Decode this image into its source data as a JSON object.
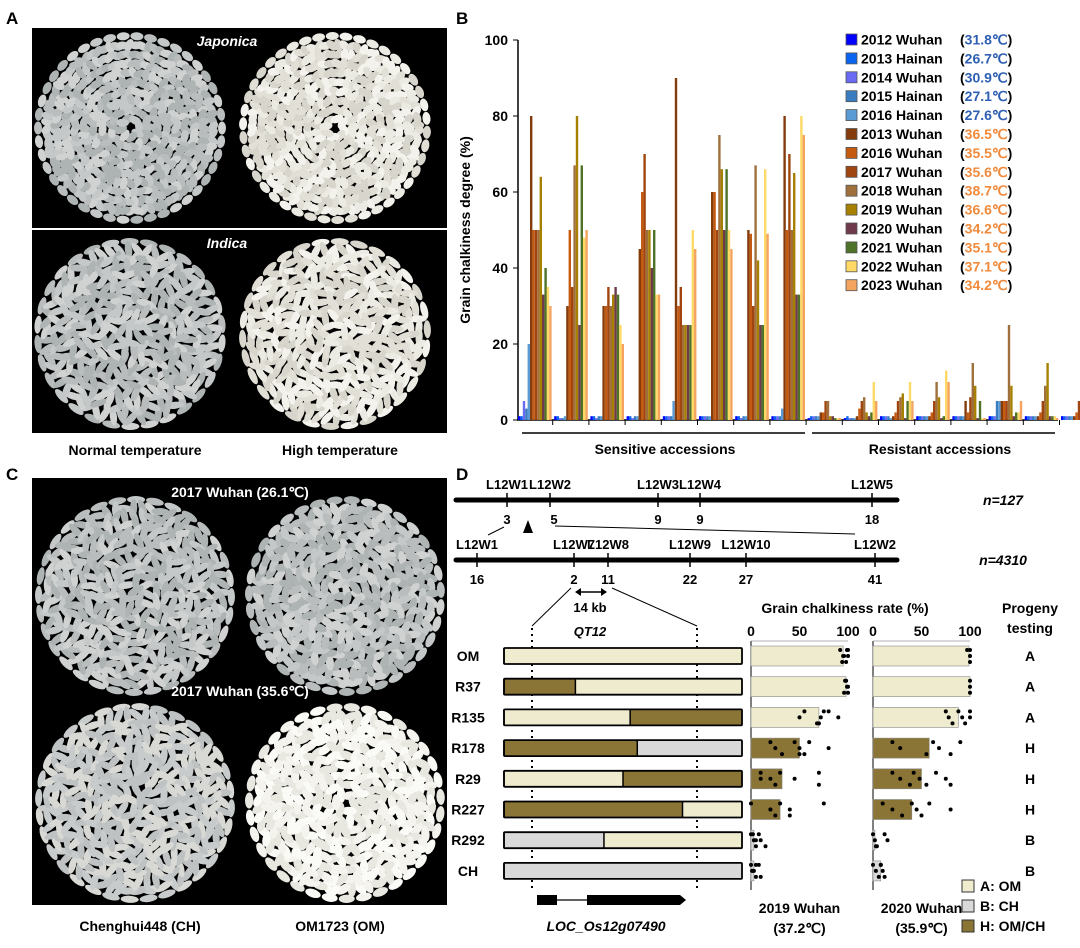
{
  "panels": {
    "a": "A",
    "b": "B",
    "c": "C",
    "d": "D"
  },
  "panel_a": {
    "top_label": "Japonica",
    "bottom_label": "Indica",
    "caption_left": "Normal temperature",
    "caption_right": "High temperature"
  },
  "panel_c": {
    "top_label": "2017 Wuhan (26.1℃)",
    "bottom_label": "2017 Wuhan (35.6℃)",
    "caption_left": "Chenghui448 (CH)",
    "caption_right": "OM1723 (OM)"
  },
  "chart_data": [
    {
      "type": "bar",
      "panel": "B",
      "ylabel": "Grain chalkiness degree (%)",
      "ylim": [
        0,
        100
      ],
      "yticks": [
        "0",
        "20",
        "40",
        "60",
        "80",
        "100"
      ],
      "groups": [
        "Sensitive accessions",
        "Resistant accessions"
      ],
      "legend_position": "top-right",
      "series": [
        {
          "name": "2012 Wuhan",
          "temp": "31.8℃",
          "color": "#0000ff",
          "temp_color": "#2f5fb3",
          "values": [
            1,
            1,
            1,
            1,
            1,
            1,
            1,
            1,
            0.5,
            0.5,
            1,
            1,
            1,
            1,
            1,
            1
          ]
        },
        {
          "name": "2013 Hainan",
          "temp": "26.7℃",
          "color": "#0a64f0",
          "temp_color": "#2f5fb3",
          "values": [
            1,
            1,
            1,
            1,
            1,
            1,
            1,
            1,
            1,
            1,
            1,
            1,
            1,
            1,
            1,
            1
          ]
        },
        {
          "name": "2014 Wuhan",
          "temp": "30.9℃",
          "color": "#6a6af5",
          "temp_color": "#2f5fb3",
          "values": [
            5,
            0.5,
            0.5,
            0.5,
            1,
            1,
            0.5,
            1,
            1,
            0.5,
            1,
            1,
            1,
            1,
            1,
            1
          ]
        },
        {
          "name": "2015 Hainan",
          "temp": "27.1℃",
          "color": "#3a7cc0",
          "temp_color": "#2f5fb3",
          "values": [
            3,
            0.5,
            1,
            1,
            1,
            1,
            1,
            1,
            1,
            0.5,
            1,
            1,
            1,
            5,
            1,
            1
          ]
        },
        {
          "name": "2016 Hainan",
          "temp": "27.6℃",
          "color": "#5b9bd5",
          "temp_color": "#2f5fb3",
          "values": [
            20,
            1,
            1,
            1,
            5,
            1,
            1,
            3,
            1,
            0.5,
            0.5,
            1,
            1,
            5,
            1,
            1
          ]
        },
        {
          "name": "2013 Wuhan",
          "temp": "36.5℃",
          "color": "#843c0c",
          "temp_color": "#f08a3c",
          "values": [
            80,
            30,
            30,
            45,
            90,
            60,
            50,
            80,
            2,
            1,
            1,
            1,
            5,
            5,
            1,
            1
          ]
        },
        {
          "name": "2016 Wuhan",
          "temp": "35.5℃",
          "color": "#c55a11",
          "temp_color": "#f08a3c",
          "values": [
            50,
            50,
            30,
            60,
            30,
            60,
            49,
            50,
            2,
            3,
            2,
            2,
            2,
            5,
            2,
            2
          ]
        },
        {
          "name": "2017 Wuhan",
          "temp": "35.6℃",
          "color": "#a0450f",
          "temp_color": "#f08a3c",
          "values": [
            50,
            35,
            35,
            70,
            35,
            50,
            30,
            70,
            5,
            5,
            5,
            5,
            6,
            5,
            5,
            5
          ]
        },
        {
          "name": "2018 Wuhan",
          "temp": "38.7℃",
          "color": "#a0703c",
          "temp_color": "#f08a3c",
          "values": [
            50,
            67,
            30,
            50,
            25,
            75,
            67,
            50,
            5,
            6,
            6,
            10,
            15,
            25,
            9,
            9
          ]
        },
        {
          "name": "2019 Wuhan",
          "temp": "36.6℃",
          "color": "#a88000",
          "temp_color": "#f08a3c",
          "values": [
            64,
            80,
            33,
            50,
            25,
            66,
            42,
            65,
            1,
            2,
            7,
            6,
            9,
            9,
            15,
            20
          ]
        },
        {
          "name": "2020 Wuhan",
          "temp": "34.2℃",
          "color": "#6e3a4c",
          "temp_color": "#f08a3c",
          "values": [
            33,
            25,
            35,
            40,
            25,
            50,
            25,
            33,
            1,
            1,
            0.5,
            0.5,
            0.5,
            1,
            1,
            0.5
          ]
        },
        {
          "name": "2021 Wuhan",
          "temp": "35.1℃",
          "color": "#4e7228",
          "temp_color": "#f08a3c",
          "values": [
            40,
            67,
            33,
            50,
            25,
            66,
            25,
            33,
            0.5,
            2,
            5,
            1,
            5,
            2,
            1,
            2
          ]
        },
        {
          "name": "2022 Wuhan",
          "temp": "37.1℃",
          "color": "#ffd966",
          "temp_color": "#f08a3c",
          "values": [
            35,
            48,
            25,
            33,
            50,
            50,
            66,
            80,
            0.5,
            10,
            10,
            13,
            0.5,
            2,
            1,
            1
          ]
        },
        {
          "name": "2023 Wuhan",
          "temp": "34.2℃",
          "color": "#f4a460",
          "temp_color": "#f08a3c",
          "values": [
            30,
            50,
            20,
            33,
            45,
            45,
            49,
            75,
            0.5,
            5,
            5,
            10,
            0.5,
            5,
            0.5,
            0.5
          ]
        }
      ]
    },
    {
      "type": "bar",
      "panel": "D",
      "title": "Grain chalkiness rate (%)",
      "xlim": [
        0,
        100
      ],
      "xticks": [
        "0",
        "50",
        "100"
      ],
      "progeny_header": [
        "Progeny",
        "testing"
      ],
      "lines": [
        "OM",
        "R37",
        "R135",
        "R178",
        "R29",
        "R227",
        "R292",
        "CH"
      ],
      "haplotypes": [
        [
          [
            "A",
            1
          ]
        ],
        [
          [
            "H",
            0.3
          ],
          [
            "A",
            0.7
          ]
        ],
        [
          [
            "A",
            0.53
          ],
          [
            "H",
            0.47
          ]
        ],
        [
          [
            "H",
            0.56
          ],
          [
            "B",
            0.44
          ]
        ],
        [
          [
            "A",
            0.5
          ],
          [
            "H",
            0.5
          ]
        ],
        [
          [
            "H",
            0.75
          ],
          [
            "A",
            0.25
          ]
        ],
        [
          [
            "B",
            0.42
          ],
          [
            "A",
            0.58
          ]
        ],
        [
          [
            "B",
            1
          ]
        ]
      ],
      "progeny": [
        "A",
        "A",
        "A",
        "H",
        "H",
        "H",
        "B",
        "B"
      ],
      "environments": [
        {
          "name": "2019 Wuhan",
          "temp": "(37.2℃)",
          "means": [
            95,
            98,
            70,
            50,
            32,
            30,
            3,
            3
          ],
          "points": [
            [
              92,
              95,
              98,
              100,
              96,
              94,
              99,
              100
            ],
            [
              97,
              99,
              100,
              98,
              100,
              96
            ],
            [
              55,
              50,
              70,
              75,
              72,
              68,
              80,
              90
            ],
            [
              20,
              25,
              32,
              45,
              50,
              55,
              60,
              80,
              50
            ],
            [
              10,
              20,
              25,
              30,
              45,
              70,
              70,
              10
            ],
            [
              0,
              20,
              25,
              30,
              40,
              40,
              75,
              20
            ],
            [
              0,
              3,
              5,
              8,
              10,
              15,
              2,
              5
            ],
            [
              0,
              2,
              5,
              8,
              3,
              10,
              5,
              1
            ]
          ]
        },
        {
          "name": "2020 Wuhan",
          "temp": "(35.9℃)",
          "means": [
            99,
            100,
            88,
            58,
            50,
            40,
            2,
            8
          ],
          "points": [
            [
              97,
              100,
              100,
              100
            ],
            [
              100,
              100,
              100
            ],
            [
              75,
              78,
              82,
              88,
              92,
              95,
              100,
              100
            ],
            [
              20,
              28,
              55,
              62,
              68,
              80,
              90
            ],
            [
              20,
              28,
              38,
              42,
              48,
              55,
              65,
              75,
              80
            ],
            [
              10,
              20,
              30,
              40,
              45,
              50,
              58,
              80
            ],
            [
              0,
              2,
              3,
              12,
              15,
              4
            ],
            [
              0,
              3,
              6,
              8,
              10,
              12,
              8
            ]
          ]
        }
      ],
      "legend": [
        {
          "code": "A",
          "label": "A: OM",
          "color": "#efebcf"
        },
        {
          "code": "B",
          "label": "B: CH",
          "color": "#d9d9d9"
        },
        {
          "code": "H",
          "label": "H: OM/CH",
          "color": "#8b7536"
        }
      ]
    }
  ],
  "panel_d": {
    "map1": {
      "markers": [
        "L12W1",
        "L12W2",
        "L12W3",
        "L12W4",
        "L12W5"
      ],
      "counts": [
        "3",
        "5",
        "9",
        "9",
        "18"
      ],
      "n": "n=127"
    },
    "map2": {
      "markers": [
        "L12W1",
        "L12W7",
        "L12W8",
        "L12W9",
        "L12W10",
        "L12W2"
      ],
      "counts": [
        "16",
        "2",
        "11",
        "22",
        "27",
        "41"
      ],
      "n": "n=4310"
    },
    "interval": "14 kb",
    "locus": "QT12",
    "gene": "LOC_Os12g07490"
  }
}
